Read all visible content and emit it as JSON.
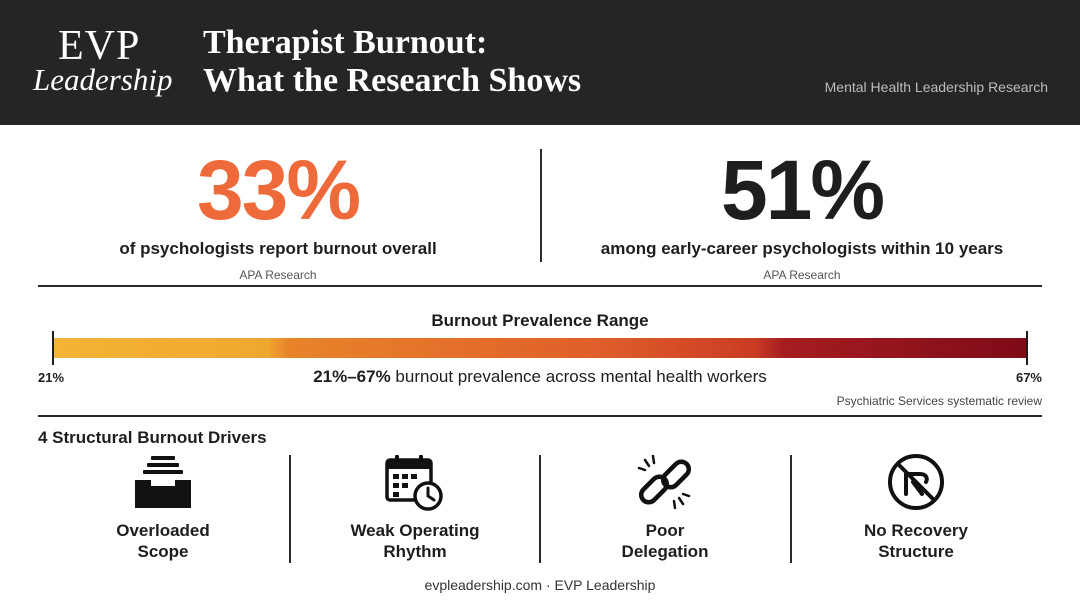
{
  "header": {
    "logo_top": "EVP",
    "logo_bottom": "Leadership",
    "title_line1": "Therapist Burnout:",
    "title_line2": "What the Research Shows",
    "tagline": "Mental Health Leadership Research",
    "background": "#252525"
  },
  "stats": [
    {
      "value": "33%",
      "description": "of psychologists report burnout overall",
      "source": "APA Research",
      "color": "#ef6a3a"
    },
    {
      "value": "51%",
      "description": "among early-career psychologists within 10 years",
      "source": "APA Research",
      "color": "#1e1e1e"
    }
  ],
  "range": {
    "title": "Burnout Prevalence Range",
    "min_label": "21%",
    "max_label": "67%",
    "min_value": 21,
    "max_value": 67,
    "caption_bold": "21%–67%",
    "caption_rest": " burnout prevalence across mental health workers",
    "source": "Psychiatric Services systematic review",
    "gradient_colors": [
      "#f4b436",
      "#e8842a",
      "#cb3c24",
      "#7e0b18"
    ]
  },
  "drivers": {
    "title": "4 Structural Burnout Drivers",
    "items": [
      {
        "icon": "inbox-tray-icon",
        "line1": "Overloaded",
        "line2": "Scope"
      },
      {
        "icon": "calendar-clock-icon",
        "line1": "Weak Operating",
        "line2": "Rhythm"
      },
      {
        "icon": "broken-link-icon",
        "line1": "Poor",
        "line2": "Delegation"
      },
      {
        "icon": "no-recovery-icon",
        "line1": "No Recovery",
        "line2": "Structure"
      }
    ]
  },
  "footer": {
    "text": "evpleadership.com · EVP Leadership"
  }
}
